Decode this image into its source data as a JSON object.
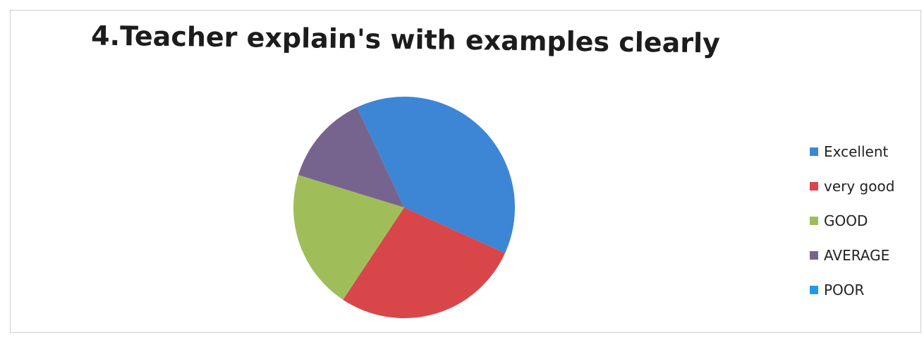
{
  "chart_data": {
    "type": "pie",
    "title": "4.Teacher explain's with examples clearly",
    "legend_position": "right",
    "slices": [
      {
        "label": "Excellent",
        "value": 38,
        "color": "#3d86d6"
      },
      {
        "label": "very good",
        "value": 27,
        "color": "#d9464a"
      },
      {
        "label": "GOOD",
        "value": 20,
        "color": "#9fbe5a"
      },
      {
        "label": "AVERAGE",
        "value": 13,
        "color": "#77648e"
      },
      {
        "label": "POOR",
        "value": 0,
        "color": "#1f9ce8"
      }
    ]
  }
}
